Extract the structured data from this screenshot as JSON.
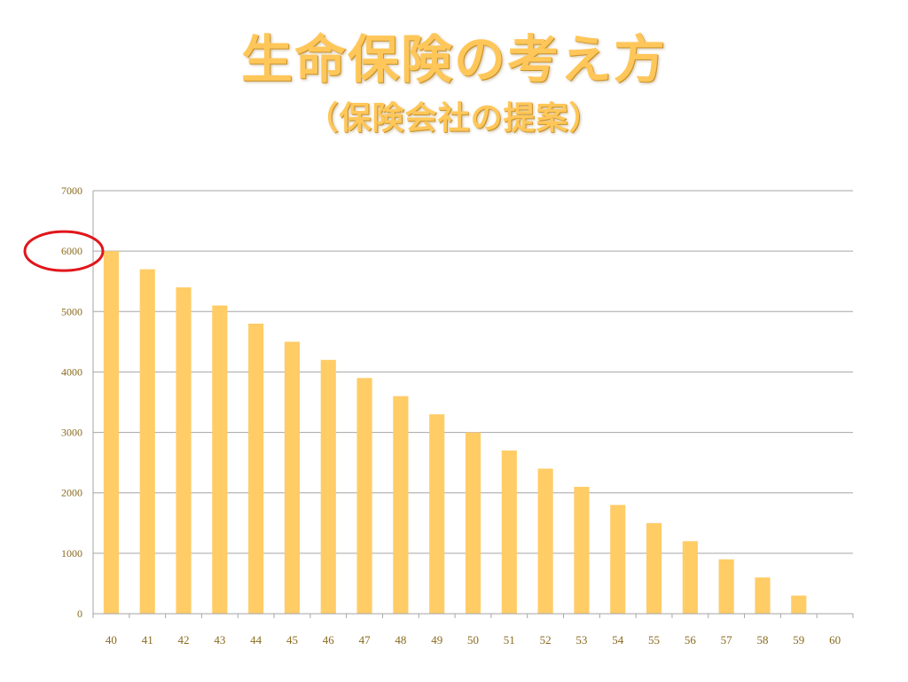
{
  "title": "生命保険の考え方",
  "subtitle": "（保険会社の提案）",
  "colors": {
    "bar": "#ffcc66",
    "title": "#ffc75a",
    "grid": "#a6a6a6",
    "highlight": "#e0161b"
  },
  "chart_data": {
    "type": "bar",
    "categories": [
      "40",
      "41",
      "42",
      "43",
      "44",
      "45",
      "46",
      "47",
      "48",
      "49",
      "50",
      "51",
      "52",
      "53",
      "54",
      "55",
      "56",
      "57",
      "58",
      "59",
      "60"
    ],
    "values": [
      6000,
      5700,
      5400,
      5100,
      4800,
      4500,
      4200,
      3900,
      3600,
      3300,
      3000,
      2700,
      2400,
      2100,
      1800,
      1500,
      1200,
      900,
      600,
      300,
      0
    ],
    "ylim": [
      0,
      7000
    ],
    "yticks": [
      0,
      1000,
      2000,
      3000,
      4000,
      5000,
      6000,
      7000
    ],
    "grid": true,
    "legend": "none",
    "highlighted_tick": 6000
  }
}
